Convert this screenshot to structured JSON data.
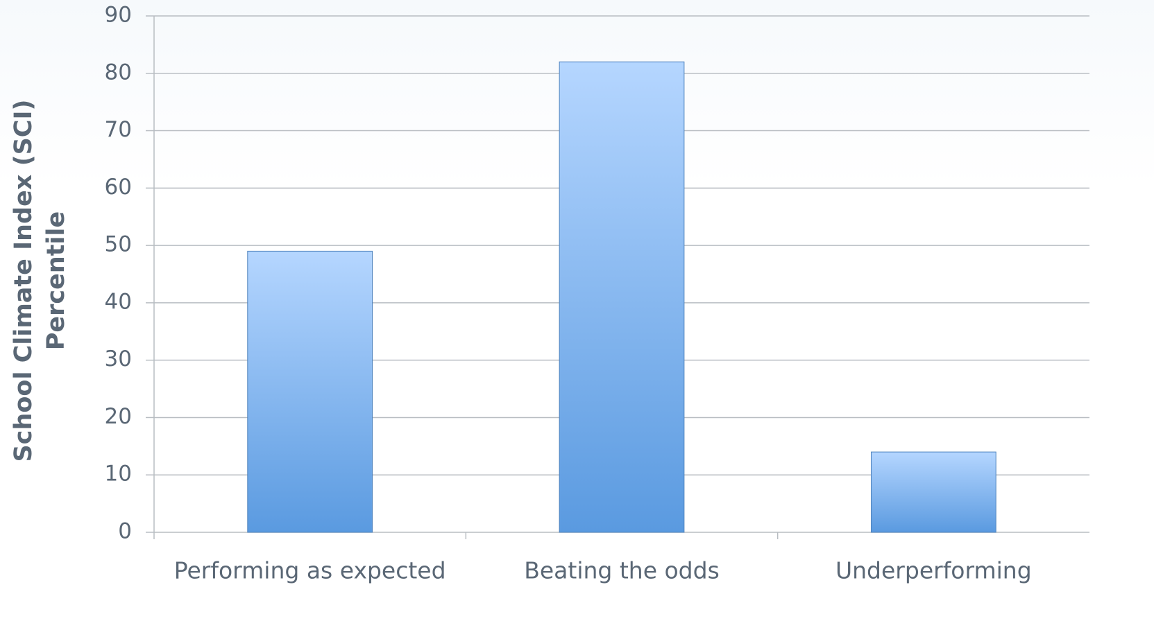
{
  "chart_data": {
    "type": "bar",
    "ylabel": [
      "School Climate Index (SCI)",
      "Percentile"
    ],
    "categories": [
      "Performing as expected",
      "Beating the odds",
      "Underperforming"
    ],
    "values": [
      49,
      82,
      14
    ],
    "color": "#6aa6ea",
    "ylim": [
      0,
      90
    ],
    "yticks": [
      0,
      10,
      20,
      30,
      40,
      50,
      60,
      70,
      80,
      90
    ],
    "grid": true
  }
}
